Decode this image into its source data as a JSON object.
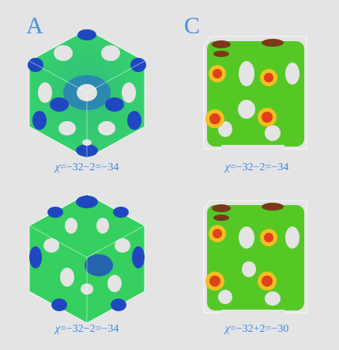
{
  "panels": {
    "left_letter": "A",
    "right_letter": "C"
  },
  "captions": {
    "top_left": {
      "symbol": "χ",
      "text": "=−32−2=−34"
    },
    "top_right": {
      "symbol": "χ",
      "text": "=−32−2=−34"
    },
    "bottom_left": {
      "symbol": "χ",
      "text": "=−32−2=−34"
    },
    "bottom_right": {
      "symbol": "χ",
      "text": "=−32+2=−30"
    }
  },
  "colors": {
    "background": "#e4e4e4",
    "surface_green": "#4fd23a",
    "surface_blue": "#1d3fb8",
    "surface_red": "#d23a1e",
    "label_blue": "#3f86e6"
  }
}
